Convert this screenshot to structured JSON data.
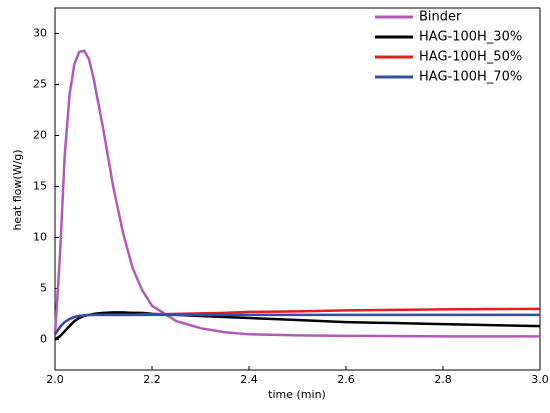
{
  "chart_data": {
    "type": "line",
    "x_label": "time (min)",
    "y_label": "heat flow(W/g)",
    "x": [
      2.0,
      2.01,
      2.02,
      2.03,
      2.04,
      2.05,
      2.06,
      2.07,
      2.08,
      2.1,
      2.12,
      2.14,
      2.16,
      2.18,
      2.2,
      2.25,
      2.3,
      2.35,
      2.4,
      2.5,
      2.6,
      2.8,
      3.0
    ],
    "series": [
      {
        "name": "Binder",
        "color": "#b259b8",
        "values": [
          0.5,
          8,
          18,
          24,
          27,
          28.2,
          28.3,
          27.5,
          25.5,
          20.5,
          15,
          10.5,
          7,
          4.8,
          3.3,
          1.8,
          1.1,
          0.7,
          0.5,
          0.4,
          0.35,
          0.3,
          0.3
        ]
      },
      {
        "name": "HAG-100H_30%",
        "color": "#000000",
        "values": [
          0,
          0.3,
          0.8,
          1.3,
          1.8,
          2.1,
          2.3,
          2.4,
          2.5,
          2.6,
          2.65,
          2.65,
          2.6,
          2.6,
          2.5,
          2.4,
          2.3,
          2.2,
          2.1,
          1.9,
          1.7,
          1.5,
          1.3
        ]
      },
      {
        "name": "HAG-100H_50%",
        "color": "#e02020",
        "values": [
          0.5,
          1.2,
          1.7,
          2.0,
          2.2,
          2.3,
          2.35,
          2.4,
          2.4,
          2.4,
          2.4,
          2.4,
          2.4,
          2.45,
          2.45,
          2.5,
          2.55,
          2.6,
          2.7,
          2.75,
          2.85,
          2.95,
          3.0
        ]
      },
      {
        "name": "HAG-100H_70%",
        "color": "#2f4fa8",
        "values": [
          0.5,
          1.2,
          1.7,
          2.0,
          2.2,
          2.3,
          2.35,
          2.4,
          2.4,
          2.4,
          2.4,
          2.4,
          2.4,
          2.4,
          2.4,
          2.4,
          2.4,
          2.4,
          2.4,
          2.4,
          2.4,
          2.4,
          2.4
        ]
      }
    ],
    "xlim": [
      2.0,
      3.0
    ],
    "xticks": [
      {
        "value": 2.0,
        "label": "2.0"
      },
      2.2,
      2.4,
      2.6,
      2.8,
      {
        "value": 3.0,
        "label": "3.0"
      }
    ],
    "ylim": [
      -3,
      32.5
    ],
    "yticks": [
      0,
      5,
      10,
      15,
      20,
      25,
      30
    ],
    "legend": "top-right"
  }
}
